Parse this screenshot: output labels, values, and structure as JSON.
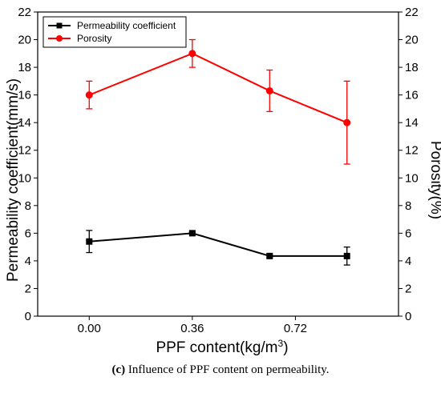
{
  "chart_data": {
    "type": "line",
    "categories": [
      "0.00",
      "0.36",
      "0.72"
    ],
    "x": [
      0.0,
      0.36,
      0.63,
      0.9
    ],
    "xlabel_prefix": "PPF content(kg/m",
    "xlabel_sup": "3",
    "xlabel_suffix": ")",
    "ylabel_left": "Permeability coefficient(mm/s)",
    "ylabel_right": "Porosity(%)",
    "xlim": [
      -0.18,
      1.08
    ],
    "ylim": [
      0,
      22
    ],
    "yticks": [
      0,
      2,
      4,
      6,
      8,
      10,
      12,
      14,
      16,
      18,
      20,
      22
    ],
    "grid": false,
    "legend_position": "top-left",
    "series": [
      {
        "name": "Permeability coefficient",
        "color": "#000000",
        "marker": "square",
        "axis": "left",
        "values": [
          5.4,
          6.0,
          4.35,
          4.35
        ],
        "errors": [
          0.8,
          0.1,
          0.1,
          0.65
        ]
      },
      {
        "name": "Porosity",
        "color": "#ff0000",
        "marker": "circle",
        "axis": "right",
        "values": [
          16.0,
          19.0,
          16.3,
          14.0
        ],
        "errors": [
          1.0,
          1.0,
          1.5,
          3.0
        ]
      }
    ]
  },
  "caption": {
    "label": "(c)",
    "text": " Influence of PPF content on permeability."
  }
}
